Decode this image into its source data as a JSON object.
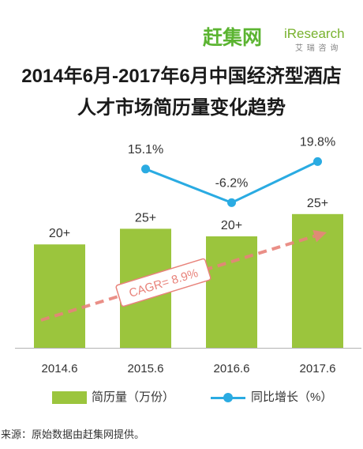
{
  "logos": {
    "ganji": "赶集网",
    "iresearch": "iResearch",
    "iresearch_cn": "艾 瑞 咨 询"
  },
  "colors": {
    "ganji_logo": "#5BB431",
    "iresearch_logo": "#78B22E",
    "title_text": "#1A1A1A",
    "axis": "#B3B3B3"
  },
  "chart_data": {
    "type": "bar",
    "title": [
      "2014年6月-2017年6月中国经济型酒店",
      "人才市场简历量变化趋势"
    ],
    "categories": [
      "2014.6",
      "2015.6",
      "2016.6",
      "2017.6"
    ],
    "series": [
      {
        "name": "简历量（万份）",
        "type": "bar",
        "values": [
          21.8,
          25.1,
          23.5,
          28.2
        ],
        "labels": [
          "20+",
          "25+",
          "20+",
          "25+"
        ],
        "color": "#9BC53D"
      },
      {
        "name": "同比增长（%）",
        "type": "line",
        "x": [
          "2015.6",
          "2016.6",
          "2017.6"
        ],
        "values": [
          15.1,
          -6.2,
          19.8
        ],
        "labels": [
          "15.1%",
          "-6.2%",
          "19.8%"
        ],
        "color": "#2AABE2"
      }
    ],
    "ylim": [
      0,
      40
    ],
    "y2lim": [
      -98,
      22
    ],
    "annotations": [
      {
        "text": "CAGR= 8.9%",
        "color": "#E8837B"
      }
    ],
    "legend": "bottom",
    "grid": false
  },
  "source": "来源：原始数据由赶集网提供。"
}
